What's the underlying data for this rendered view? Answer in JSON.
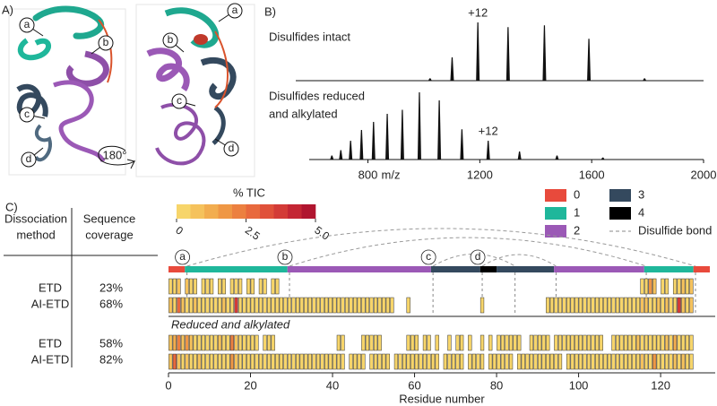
{
  "panel_a": {
    "label": "A)",
    "markers": [
      "a",
      "b",
      "c",
      "d"
    ],
    "rotation": "180°"
  },
  "panel_b": {
    "label": "B)",
    "type": "spectrum",
    "xlabel": "m/z",
    "xlim": [
      590,
      2000
    ],
    "xticks": [
      800,
      1200,
      1600,
      2000
    ],
    "ylim": [
      0,
      100
    ],
    "spectra": [
      {
        "name_lines": [
          "Disulfides intact"
        ],
        "annotation": {
          "text": "+12",
          "mz": 1193
        },
        "mz": [
          1022,
          1101,
          1193,
          1301,
          1431,
          1590,
          1789
        ],
        "intensity": [
          4,
          40,
          100,
          92,
          95,
          72,
          4
        ]
      },
      {
        "name_lines": [
          "Disulfides reduced",
          "and alkylated"
        ],
        "annotation": {
          "text": "+12",
          "mz": 1230
        },
        "mz": [
          671,
          703,
          738,
          777,
          820,
          869,
          923,
          984,
          1055,
          1136,
          1230,
          1342,
          1476,
          1640
        ],
        "intensity": [
          6,
          14,
          28,
          44,
          56,
          68,
          74,
          100,
          88,
          45,
          28,
          12,
          6,
          3
        ]
      }
    ]
  },
  "panel_c": {
    "label": "C)",
    "table": {
      "headers": [
        [
          "Dissociation",
          "method"
        ],
        [
          "Sequence",
          "coverage"
        ]
      ],
      "rows": [
        [
          "ETD",
          "23%"
        ],
        [
          "AI-ETD",
          "68%"
        ],
        [
          "ETD",
          "58%"
        ],
        [
          "AI-ETD",
          "82%"
        ]
      ]
    },
    "colorbar": {
      "title": "% TIC",
      "clim": [
        0,
        5
      ],
      "ticks": [
        0,
        2.5,
        {
          "value": 5,
          "label": "5.0"
        }
      ],
      "colormap": [
        "#f7d56a",
        "#f5c25c",
        "#f2ad4f",
        "#ef9745",
        "#ec8040",
        "#e8693d",
        "#e0513a",
        "#d33b37",
        "#c42634",
        "#b0152f"
      ]
    },
    "legend": [
      {
        "name": "0",
        "color": "#e84a3c"
      },
      {
        "name": "1",
        "color": "#1fb79b"
      },
      {
        "name": "2",
        "color": "#9b59b6"
      },
      {
        "name": "3",
        "color": "#34495e"
      },
      {
        "name": "4",
        "color": "#000000"
      }
    ],
    "bond_legend": "Disulfide bond"
  },
  "coverage": {
    "xlabel": "Residue number",
    "xlim": [
      0,
      132
    ],
    "xticks": [
      0,
      20,
      40,
      60,
      80,
      100,
      120
    ],
    "section_label": "Reduced and alkylated",
    "sequence_regions": [
      {
        "start": 1,
        "end": 4,
        "group": 0
      },
      {
        "start": 5,
        "end": 29,
        "group": 1
      },
      {
        "start": 30,
        "end": 64,
        "group": 2
      },
      {
        "start": 65,
        "end": 76,
        "group": 3
      },
      {
        "start": 77,
        "end": 80,
        "group": 4
      },
      {
        "start": 81,
        "end": 94,
        "group": 3
      },
      {
        "start": 95,
        "end": 116,
        "group": 2
      },
      {
        "start": 117,
        "end": 128,
        "group": 1
      },
      {
        "start": 129,
        "end": 132,
        "group": 0
      }
    ],
    "disulfide_bonds": [
      {
        "label": "a",
        "from": 5,
        "to": 129
      },
      {
        "label": "b",
        "from": 30,
        "to": 117
      },
      {
        "label": "c",
        "from": 65,
        "to": 85
      },
      {
        "label": "d",
        "from": 77,
        "to": 95
      }
    ],
    "x": [
      1,
      2,
      3,
      4,
      5,
      6,
      7,
      8,
      9,
      10,
      11,
      12,
      13,
      14,
      15,
      16,
      17,
      18,
      19,
      20,
      21,
      22,
      23,
      24,
      25,
      26,
      27,
      28,
      29,
      30,
      31,
      32,
      33,
      34,
      35,
      36,
      37,
      38,
      39,
      40,
      41,
      42,
      43,
      44,
      45,
      46,
      47,
      48,
      49,
      50,
      51,
      52,
      53,
      54,
      55,
      56,
      57,
      58,
      59,
      60,
      61,
      62,
      63,
      64,
      65,
      66,
      67,
      68,
      69,
      70,
      71,
      72,
      73,
      74,
      75,
      76,
      77,
      78,
      79,
      80,
      81,
      82,
      83,
      84,
      85,
      86,
      87,
      88,
      89,
      90,
      91,
      92,
      93,
      94,
      95,
      96,
      97,
      98,
      99,
      100,
      101,
      102,
      103,
      104,
      105,
      106,
      107,
      108,
      109,
      110,
      111,
      112,
      113,
      114,
      115,
      116,
      117,
      118,
      119,
      120,
      121,
      122,
      123,
      124,
      125,
      126,
      127,
      128,
      129
    ],
    "tracks": [
      {
        "values": [
          0.4,
          0.3,
          0.5,
          null,
          0.6,
          0.4,
          0.3,
          null,
          0.3,
          0.3,
          0.2,
          null,
          0.3,
          0.4,
          null,
          0.3,
          0.2,
          0.3,
          null,
          0.2,
          0.3,
          null,
          0.2,
          0.3,
          null,
          0.2,
          0.3,
          null,
          null,
          null,
          null,
          null,
          null,
          null,
          null,
          null,
          null,
          null,
          null,
          null,
          null,
          null,
          null,
          null,
          null,
          null,
          null,
          null,
          null,
          null,
          null,
          null,
          null,
          null,
          null,
          null,
          null,
          null,
          null,
          null,
          null,
          null,
          null,
          null,
          null,
          null,
          null,
          null,
          null,
          null,
          null,
          null,
          null,
          null,
          null,
          null,
          null,
          null,
          null,
          null,
          null,
          null,
          null,
          null,
          null,
          null,
          null,
          null,
          null,
          null,
          null,
          null,
          null,
          null,
          null,
          null,
          null,
          null,
          null,
          null,
          null,
          null,
          null,
          null,
          null,
          null,
          null,
          null,
          null,
          null,
          null,
          null,
          null,
          null,
          null,
          0.4,
          0.3,
          1.8,
          0.5,
          null,
          0.3,
          0.4,
          null,
          0.3,
          0.4,
          0.6,
          0.3,
          0.5,
          null
        ]
      },
      {
        "values": [
          0.5,
          0.4,
          2.5,
          0.6,
          0.4,
          0.3,
          0.5,
          0.3,
          0.4,
          0.3,
          0.3,
          0.4,
          0.3,
          0.5,
          0.3,
          0.4,
          3.5,
          0.4,
          0.3,
          0.3,
          0.3,
          0.4,
          0.3,
          0.3,
          0.2,
          0.3,
          0.4,
          0.2,
          0.3,
          0.2,
          0.2,
          0.3,
          0.2,
          0.3,
          0.2,
          0.3,
          0.2,
          0.2,
          0.3,
          0.2,
          0.2,
          0.3,
          0.2,
          0.2,
          0.3,
          0.2,
          0.2,
          0.3,
          0.2,
          0.2,
          0.2,
          0.2,
          0.3,
          0.2,
          0.2,
          null,
          null,
          null,
          0.3,
          null,
          null,
          null,
          null,
          null,
          null,
          null,
          null,
          null,
          null,
          null,
          null,
          null,
          null,
          null,
          null,
          null,
          0.3,
          null,
          null,
          null,
          null,
          null,
          null,
          null,
          null,
          null,
          null,
          null,
          null,
          null,
          null,
          null,
          0.3,
          0.3,
          0.2,
          0.4,
          0.3,
          0.2,
          0.3,
          0.3,
          0.2,
          0.3,
          0.3,
          0.2,
          0.4,
          0.3,
          0.2,
          0.3,
          0.3,
          0.2,
          0.3,
          0.2,
          0.3,
          0.4,
          0.3,
          0.5,
          0.8,
          0.4,
          0.3,
          0.5,
          0.4,
          0.6,
          0.3,
          0.4,
          3.8,
          0.5,
          0.4,
          0.6,
          null
        ]
      },
      {
        "values": [
          0.6,
          1.2,
          2.0,
          0.8,
          1.5,
          0.5,
          0.4,
          0.3,
          0.4,
          0.3,
          0.3,
          0.4,
          0.5,
          0.3,
          0.4,
          2.2,
          0.8,
          0.4,
          0.3,
          0.3,
          0.4,
          0.3,
          null,
          0.3,
          0.3,
          0.4,
          null,
          null,
          null,
          null,
          null,
          null,
          null,
          null,
          null,
          null,
          null,
          null,
          null,
          null,
          null,
          0.3,
          0.3,
          null,
          null,
          null,
          null,
          0.3,
          0.3,
          0.3,
          0.3,
          0.4,
          null,
          null,
          null,
          null,
          null,
          null,
          0.3,
          0.3,
          0.3,
          null,
          0.2,
          0.3,
          null,
          0.3,
          null,
          null,
          0.3,
          null,
          0.3,
          0.3,
          null,
          0.3,
          null,
          null,
          0.3,
          null,
          0.3,
          null,
          0.3,
          0.3,
          0.3,
          0.3,
          0.4,
          0.3,
          null,
          null,
          0.3,
          0.3,
          0.3,
          0.4,
          0.3,
          null,
          0.3,
          0.3,
          0.3,
          0.4,
          0.3,
          0.3,
          0.3,
          0.3,
          0.3,
          0.3,
          0.2,
          0.3,
          null,
          null,
          0.3,
          0.3,
          0.3,
          0.4,
          0.3,
          0.3,
          0.5,
          0.4,
          0.3,
          0.3,
          0.4,
          0.3,
          0.3,
          0.5,
          0.3,
          1.2,
          0.4,
          0.3,
          0.4,
          0.3,
          null
        ]
      },
      {
        "values": [
          0.5,
          2.5,
          0.8,
          0.4,
          0.5,
          0.3,
          0.4,
          0.6,
          0.3,
          0.4,
          0.3,
          0.4,
          0.3,
          0.3,
          0.4,
          1.8,
          0.5,
          0.3,
          0.3,
          0.2,
          0.3,
          0.2,
          0.3,
          0.3,
          0.2,
          0.3,
          0.2,
          0.3,
          0.2,
          0.3,
          0.2,
          0.3,
          0.2,
          0.3,
          0.2,
          0.2,
          0.3,
          0.2,
          0.3,
          0.2,
          0.3,
          0.2,
          0.3,
          null,
          0.2,
          0.3,
          0.2,
          0.3,
          null,
          0.2,
          0.3,
          0.2,
          0.3,
          0.2,
          null,
          0.3,
          0.2,
          0.3,
          0.2,
          0.3,
          0.2,
          0.3,
          0.2,
          0.3,
          0.2,
          0.3,
          null,
          0.2,
          0.3,
          0.2,
          0.3,
          0.2,
          null,
          0.3,
          0.2,
          0.3,
          0.2,
          null,
          0.3,
          0.2,
          0.3,
          0.2,
          0.3,
          0.3,
          null,
          0.2,
          0.3,
          0.2,
          0.3,
          0.3,
          0.3,
          0.2,
          0.3,
          0.3,
          0.2,
          0.3,
          null,
          0.3,
          0.2,
          0.3,
          0.3,
          0.2,
          0.3,
          0.2,
          0.3,
          0.3,
          0.2,
          0.3,
          0.3,
          0.2,
          0.3,
          0.4,
          0.3,
          0.2,
          0.3,
          0.8,
          0.4,
          0.3,
          1.5,
          0.4,
          0.3,
          0.4,
          0.3,
          0.5,
          0.3,
          0.6,
          0.3,
          0.4,
          null
        ]
      }
    ]
  }
}
